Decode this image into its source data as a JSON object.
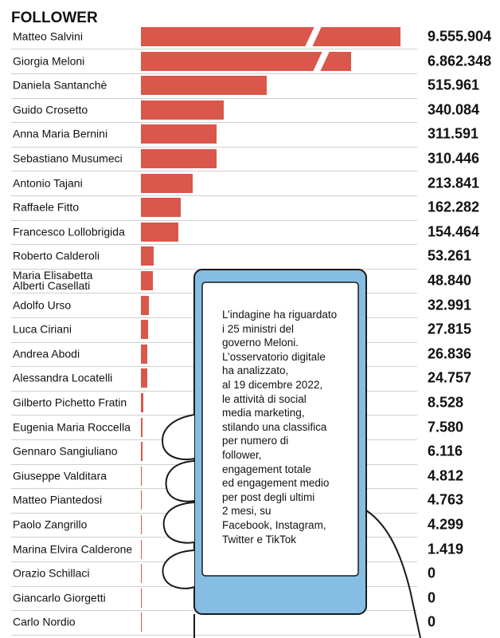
{
  "chart_data": {
    "type": "bar",
    "orientation": "horizontal",
    "title": "FOLLOWER",
    "color": "#d9574b",
    "categories": [
      "Matteo Salvini",
      "Giorgia Meloni",
      "Daniela Santanchè",
      "Guido Crosetto",
      "Anna Maria Bernini",
      "Sebastiano Musumeci",
      "Antonio Tajani",
      "Raffaele Fitto",
      "Francesco Lollobrigida",
      "Roberto Calderoli",
      "Maria Elisabetta\nAlberti Casellati",
      "Adolfo Urso",
      "Luca Ciriani",
      "Andrea Abodi",
      "Alessandra Locatelli",
      "Gilberto Pichetto Fratin",
      "Eugenia Maria Roccella",
      "Gennaro Sangiuliano",
      "Giuseppe Valditara",
      "Matteo Piantedosi",
      "Paolo Zangrillo",
      "Marina Elvira Calderone",
      "Orazio Schillaci",
      "Giancarlo Giorgetti",
      "Carlo Nordio"
    ],
    "values": [
      9555904,
      6862348,
      515961,
      340084,
      311591,
      310446,
      213841,
      162282,
      154464,
      53261,
      48840,
      32991,
      27815,
      26836,
      24757,
      8528,
      7580,
      6116,
      4812,
      4763,
      4299,
      1419,
      0,
      0,
      0
    ],
    "value_labels": [
      "9.555.904",
      "6.862.348",
      "515.961",
      "340.084",
      "311.591",
      "310.446",
      "213.841",
      "162.282",
      "154.464",
      "53.261",
      "48.840",
      "32.991",
      "27.815",
      "26.836",
      "24.757",
      "8.528",
      "7.580",
      "6.116",
      "4.812",
      "4.763",
      "4.299",
      "1.419",
      "0",
      "0",
      "0"
    ],
    "annotation": [
      "L’indagine ha riguardato",
      "i 25 ministri del",
      "governo Meloni.",
      "L’osservatorio digitale",
      "ha analizzato,",
      "al 19 dicembre 2022,",
      "le attività di social",
      "media marketing,",
      "stilando una classifica",
      "per numero di",
      "follower,",
      "engagement totale",
      "ed engagement medio",
      "per post degli ultimi",
      "2 mesi, su",
      "Facebook, Instagram,",
      "Twitter e TikTok"
    ]
  }
}
